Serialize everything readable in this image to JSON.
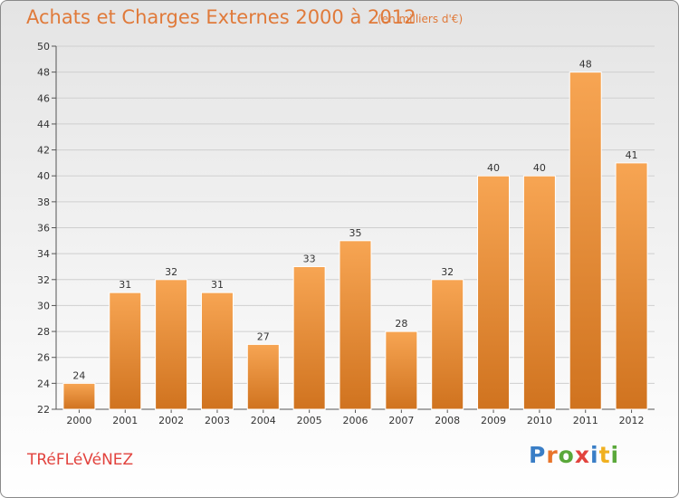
{
  "header": {
    "title": "Achats et Charges Externes 2000 à 2012",
    "subtitle": "(en milliers d'€)"
  },
  "footer": {
    "commune": "TRéFLéVéNEZ",
    "logo_letters": [
      {
        "char": "P",
        "color": "#3a7ec6"
      },
      {
        "char": "r",
        "color": "#e8742a"
      },
      {
        "char": "o",
        "color": "#5aa83a"
      },
      {
        "char": "x",
        "color": "#e2433e"
      },
      {
        "char": "i",
        "color": "#3a7ec6"
      },
      {
        "char": "t",
        "color": "#f0b020"
      },
      {
        "char": "i",
        "color": "#5aa83a"
      }
    ]
  },
  "chart_data": {
    "type": "bar",
    "categories": [
      "2000",
      "2001",
      "2002",
      "2003",
      "2004",
      "2005",
      "2006",
      "2007",
      "2008",
      "2009",
      "2010",
      "2011",
      "2012"
    ],
    "values": [
      24,
      31,
      32,
      31,
      27,
      33,
      35,
      28,
      32,
      40,
      40,
      48,
      41
    ],
    "ylim": [
      22,
      50
    ],
    "yticks": [
      22,
      24,
      26,
      28,
      30,
      32,
      34,
      36,
      38,
      40,
      42,
      44,
      46,
      48,
      50
    ],
    "grid": true,
    "bar_color_top": "#f7a553",
    "bar_color_bottom": "#d0731f",
    "text_color": "#e07a3a"
  }
}
